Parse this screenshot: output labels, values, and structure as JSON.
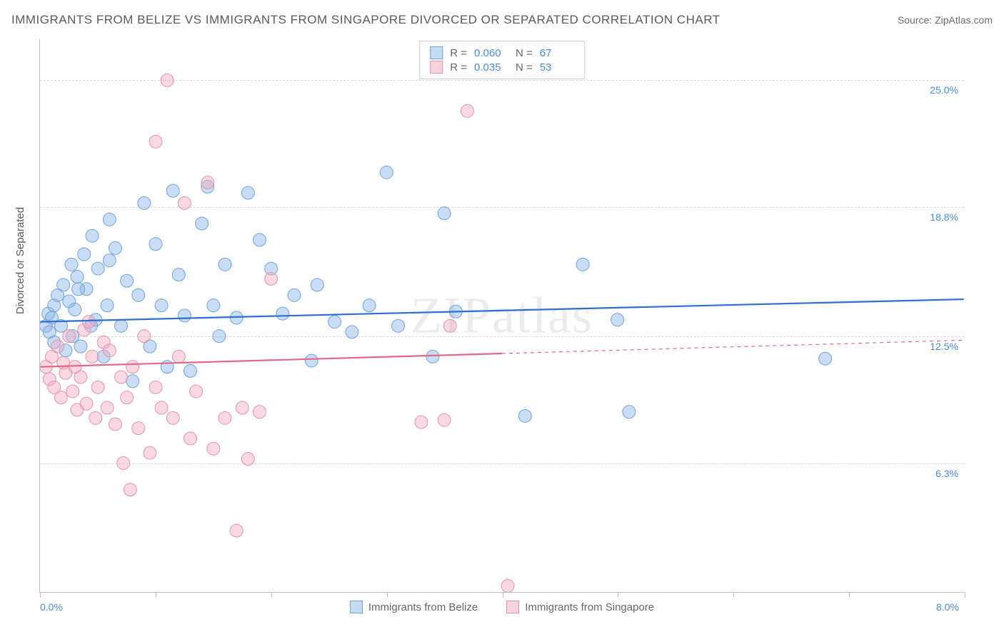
{
  "header": {
    "title": "IMMIGRANTS FROM BELIZE VS IMMIGRANTS FROM SINGAPORE DIVORCED OR SEPARATED CORRELATION CHART",
    "source_prefix": "Source: ",
    "source_name": "ZipAtlas.com"
  },
  "watermark": "ZIPatlas",
  "chart": {
    "type": "scatter",
    "y_axis_title": "Divorced or Separated",
    "xlim": [
      0.0,
      8.0
    ],
    "ylim": [
      0.0,
      27.0
    ],
    "x_ticks": [
      0.0,
      1.0,
      2.0,
      3.0,
      4.0,
      5.0,
      6.0,
      7.0,
      8.0
    ],
    "y_ticks": [
      6.3,
      12.5,
      18.8,
      25.0
    ],
    "x_tick_labels": {
      "0": "0.0%",
      "8": "8.0%"
    },
    "y_tick_labels": [
      "6.3%",
      "12.5%",
      "18.8%",
      "25.0%"
    ],
    "background_color": "#ffffff",
    "grid_color": "#d8d8d8",
    "axis_color": "#bdbdbd",
    "label_color": "#4a8ad8",
    "label_fontsize": 14,
    "marker_radius": 9,
    "marker_opacity": 0.55,
    "line_width": 2.2,
    "series": [
      {
        "name": "Immigrants from Belize",
        "color_fill": "rgba(140,180,230,0.45)",
        "color_stroke": "#6fa3dd",
        "line_color": "#2f6fd0",
        "swatch_fill": "#c5dbf2",
        "swatch_border": "#6fa3dd",
        "r": "0.060",
        "n": "67",
        "trend": {
          "x1": 0.0,
          "y1": 13.2,
          "x2": 8.0,
          "y2": 14.3,
          "dashed_from_x": null
        },
        "points": [
          [
            0.05,
            13.0
          ],
          [
            0.07,
            13.6
          ],
          [
            0.08,
            12.7
          ],
          [
            0.1,
            13.4
          ],
          [
            0.12,
            14.0
          ],
          [
            0.12,
            12.2
          ],
          [
            0.15,
            14.5
          ],
          [
            0.18,
            13.0
          ],
          [
            0.2,
            15.0
          ],
          [
            0.22,
            11.8
          ],
          [
            0.25,
            14.2
          ],
          [
            0.28,
            12.5
          ],
          [
            0.3,
            13.8
          ],
          [
            0.32,
            15.4
          ],
          [
            0.35,
            12.0
          ],
          [
            0.38,
            16.5
          ],
          [
            0.4,
            14.8
          ],
          [
            0.45,
            17.4
          ],
          [
            0.48,
            13.3
          ],
          [
            0.5,
            15.8
          ],
          [
            0.55,
            11.5
          ],
          [
            0.58,
            14.0
          ],
          [
            0.6,
            18.2
          ],
          [
            0.65,
            16.8
          ],
          [
            0.7,
            13.0
          ],
          [
            0.75,
            15.2
          ],
          [
            0.8,
            10.3
          ],
          [
            0.85,
            14.5
          ],
          [
            0.9,
            19.0
          ],
          [
            0.95,
            12.0
          ],
          [
            1.0,
            17.0
          ],
          [
            1.05,
            14.0
          ],
          [
            1.1,
            11.0
          ],
          [
            1.15,
            19.6
          ],
          [
            1.2,
            15.5
          ],
          [
            1.25,
            13.5
          ],
          [
            1.3,
            10.8
          ],
          [
            1.4,
            18.0
          ],
          [
            1.45,
            19.8
          ],
          [
            1.5,
            14.0
          ],
          [
            1.55,
            12.5
          ],
          [
            1.6,
            16.0
          ],
          [
            1.7,
            13.4
          ],
          [
            1.8,
            19.5
          ],
          [
            1.9,
            17.2
          ],
          [
            2.0,
            15.8
          ],
          [
            2.1,
            13.6
          ],
          [
            2.2,
            14.5
          ],
          [
            2.35,
            11.3
          ],
          [
            2.4,
            15.0
          ],
          [
            2.55,
            13.2
          ],
          [
            2.7,
            12.7
          ],
          [
            2.85,
            14.0
          ],
          [
            3.0,
            20.5
          ],
          [
            3.1,
            13.0
          ],
          [
            3.4,
            11.5
          ],
          [
            3.5,
            18.5
          ],
          [
            3.6,
            13.7
          ],
          [
            4.2,
            8.6
          ],
          [
            4.7,
            16.0
          ],
          [
            5.0,
            13.3
          ],
          [
            5.1,
            8.8
          ],
          [
            6.8,
            11.4
          ],
          [
            0.6,
            16.2
          ],
          [
            0.27,
            16.0
          ],
          [
            0.33,
            14.8
          ],
          [
            0.44,
            13.0
          ]
        ]
      },
      {
        "name": "Immigrants from Singapore",
        "color_fill": "rgba(240,170,190,0.45)",
        "color_stroke": "#e593ad",
        "line_color": "#e06a8a",
        "swatch_fill": "#f6d3dd",
        "swatch_border": "#e593ad",
        "r": "0.035",
        "n": "53",
        "trend": {
          "x1": 0.0,
          "y1": 11.0,
          "x2": 8.0,
          "y2": 12.3,
          "dashed_from_x": 4.0
        },
        "points": [
          [
            0.05,
            11.0
          ],
          [
            0.08,
            10.4
          ],
          [
            0.1,
            11.5
          ],
          [
            0.12,
            10.0
          ],
          [
            0.15,
            12.0
          ],
          [
            0.18,
            9.5
          ],
          [
            0.2,
            11.2
          ],
          [
            0.22,
            10.7
          ],
          [
            0.25,
            12.5
          ],
          [
            0.28,
            9.8
          ],
          [
            0.3,
            11.0
          ],
          [
            0.32,
            8.9
          ],
          [
            0.35,
            10.5
          ],
          [
            0.38,
            12.8
          ],
          [
            0.4,
            9.2
          ],
          [
            0.45,
            11.5
          ],
          [
            0.48,
            8.5
          ],
          [
            0.5,
            10.0
          ],
          [
            0.55,
            12.2
          ],
          [
            0.58,
            9.0
          ],
          [
            0.6,
            11.8
          ],
          [
            0.65,
            8.2
          ],
          [
            0.7,
            10.5
          ],
          [
            0.72,
            6.3
          ],
          [
            0.75,
            9.5
          ],
          [
            0.78,
            5.0
          ],
          [
            0.8,
            11.0
          ],
          [
            0.85,
            8.0
          ],
          [
            0.9,
            12.5
          ],
          [
            0.95,
            6.8
          ],
          [
            1.0,
            10.0
          ],
          [
            1.0,
            22.0
          ],
          [
            1.05,
            9.0
          ],
          [
            1.1,
            25.0
          ],
          [
            1.15,
            8.5
          ],
          [
            1.2,
            11.5
          ],
          [
            1.25,
            19.0
          ],
          [
            1.3,
            7.5
          ],
          [
            1.35,
            9.8
          ],
          [
            1.45,
            20.0
          ],
          [
            1.5,
            7.0
          ],
          [
            1.6,
            8.5
          ],
          [
            1.7,
            3.0
          ],
          [
            1.75,
            9.0
          ],
          [
            1.8,
            6.5
          ],
          [
            1.9,
            8.8
          ],
          [
            2.0,
            15.3
          ],
          [
            3.3,
            8.3
          ],
          [
            3.5,
            8.4
          ],
          [
            3.55,
            13.0
          ],
          [
            3.7,
            23.5
          ],
          [
            4.05,
            0.3
          ],
          [
            0.42,
            13.2
          ]
        ]
      }
    ]
  },
  "legend_top": {
    "r_label": "R =",
    "n_label": "N ="
  },
  "legend_bottom": {
    "items": [
      "Immigrants from Belize",
      "Immigrants from Singapore"
    ]
  }
}
